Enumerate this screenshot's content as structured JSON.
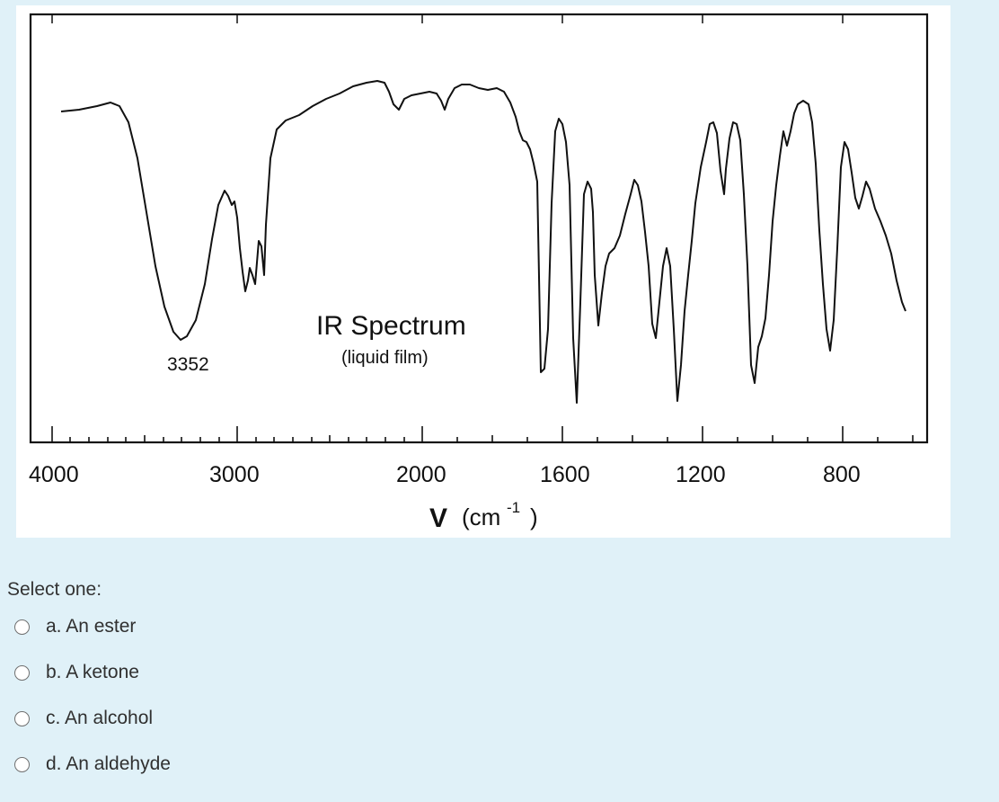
{
  "figure": {
    "title": "IR Spectrum",
    "subtitle": "(liquid film)",
    "peak_label": "3352",
    "x_axis_symbol": "V",
    "x_axis_unit": "(cm",
    "x_axis_unit_exp": "-1",
    "x_axis_unit_close": ")",
    "x_ticks": [
      "4000",
      "3000",
      "2000",
      "1600",
      "1200",
      "800"
    ]
  },
  "question": {
    "prompt": "Select one:",
    "options": [
      {
        "label": "a. An ester"
      },
      {
        "label": "b. A ketone"
      },
      {
        "label": "c. An alcohol"
      },
      {
        "label": "d. An aldehyde"
      }
    ]
  }
}
